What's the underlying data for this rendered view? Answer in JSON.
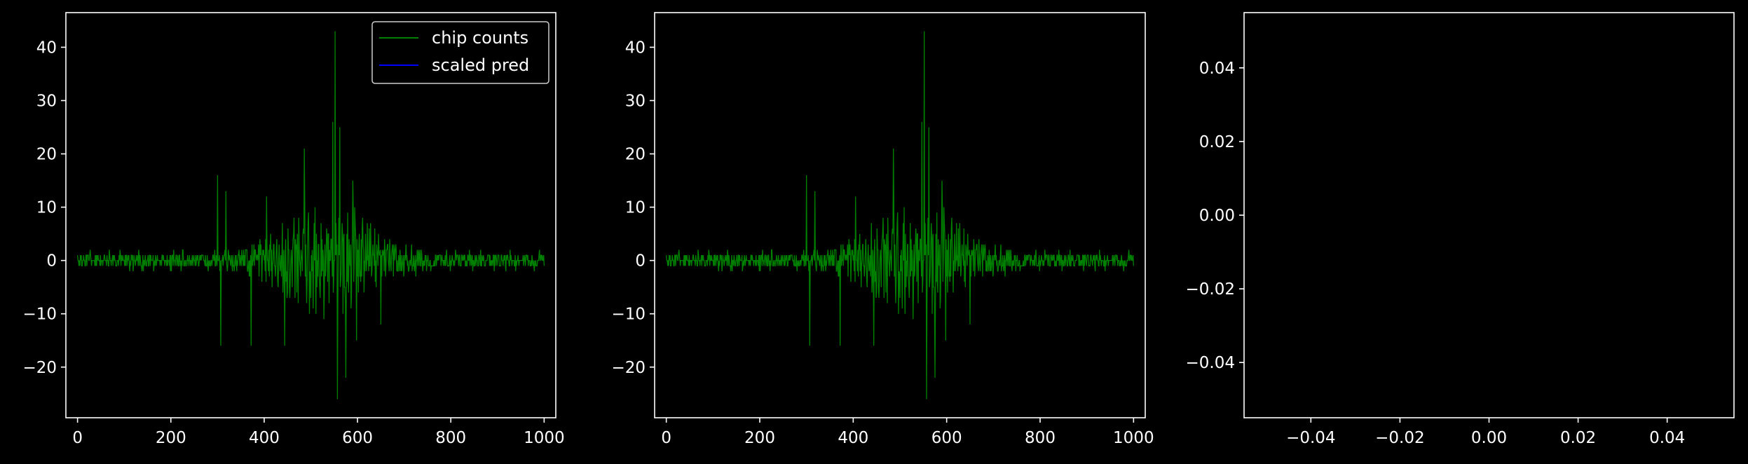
{
  "figure": {
    "background": "#000000",
    "axis_color": "#ffffff",
    "text_color": "#ffffff"
  },
  "chart_data": [
    {
      "type": "line",
      "panel": "left",
      "xlim": [
        -25,
        1025
      ],
      "ylim": [
        -29.5,
        46.5
      ],
      "xticks": [
        0,
        200,
        400,
        600,
        800,
        1000
      ],
      "yticks": [
        -20,
        -10,
        0,
        10,
        20,
        30,
        40
      ],
      "legend": {
        "placement": "top-right",
        "entries": [
          {
            "label": "chip counts",
            "color": "#008000"
          },
          {
            "label": "scaled pred",
            "color": "#0000ff"
          }
        ]
      },
      "series": [
        {
          "name": "chip counts",
          "color": "#008000",
          "x_range": [
            0,
            1000
          ],
          "peaks": [
            {
              "x": 300,
              "y": 16
            },
            {
              "x": 307,
              "y": -16
            },
            {
              "x": 318,
              "y": 13
            },
            {
              "x": 372,
              "y": -16
            },
            {
              "x": 405,
              "y": 12
            },
            {
              "x": 444,
              "y": -16
            },
            {
              "x": 486,
              "y": 21
            },
            {
              "x": 547,
              "y": 26
            },
            {
              "x": 552,
              "y": 43
            },
            {
              "x": 557,
              "y": -26
            },
            {
              "x": 562,
              "y": 25
            },
            {
              "x": 575,
              "y": -22
            },
            {
              "x": 590,
              "y": 15
            },
            {
              "x": 598,
              "y": -15
            },
            {
              "x": 650,
              "y": -12
            }
          ]
        },
        {
          "name": "scaled pred",
          "color": "#0000ff",
          "x": [],
          "y": []
        }
      ]
    },
    {
      "type": "line",
      "panel": "middle",
      "xlim": [
        -25,
        1025
      ],
      "ylim": [
        -29.5,
        46.5
      ],
      "xticks": [
        0,
        200,
        400,
        600,
        800,
        1000
      ],
      "yticks": [
        -20,
        -10,
        0,
        10,
        20,
        30,
        40
      ],
      "series": [
        {
          "color": "#008000",
          "x_range": [
            0,
            1000
          ],
          "peaks": [
            {
              "x": 300,
              "y": 16
            },
            {
              "x": 307,
              "y": -16
            },
            {
              "x": 318,
              "y": 13
            },
            {
              "x": 372,
              "y": -16
            },
            {
              "x": 405,
              "y": 12
            },
            {
              "x": 444,
              "y": -16
            },
            {
              "x": 486,
              "y": 21
            },
            {
              "x": 547,
              "y": 26
            },
            {
              "x": 552,
              "y": 43
            },
            {
              "x": 557,
              "y": -26
            },
            {
              "x": 562,
              "y": 25
            },
            {
              "x": 575,
              "y": -22
            },
            {
              "x": 590,
              "y": 15
            },
            {
              "x": 598,
              "y": -15
            },
            {
              "x": 650,
              "y": -12
            }
          ]
        }
      ]
    },
    {
      "type": "line",
      "panel": "right",
      "xlim": [
        -0.055,
        0.055
      ],
      "ylim": [
        -0.055,
        0.055
      ],
      "xticks": [
        -0.04,
        -0.02,
        0.0,
        0.02,
        0.04
      ],
      "yticks": [
        -0.04,
        -0.02,
        0.0,
        0.02,
        0.04
      ],
      "xtick_labels": [
        "−0.04",
        "−0.02",
        "0.00",
        "0.02",
        "0.04"
      ],
      "ytick_labels": [
        "−0.04",
        "−0.02",
        "0.00",
        "0.02",
        "0.04"
      ],
      "series": []
    }
  ]
}
